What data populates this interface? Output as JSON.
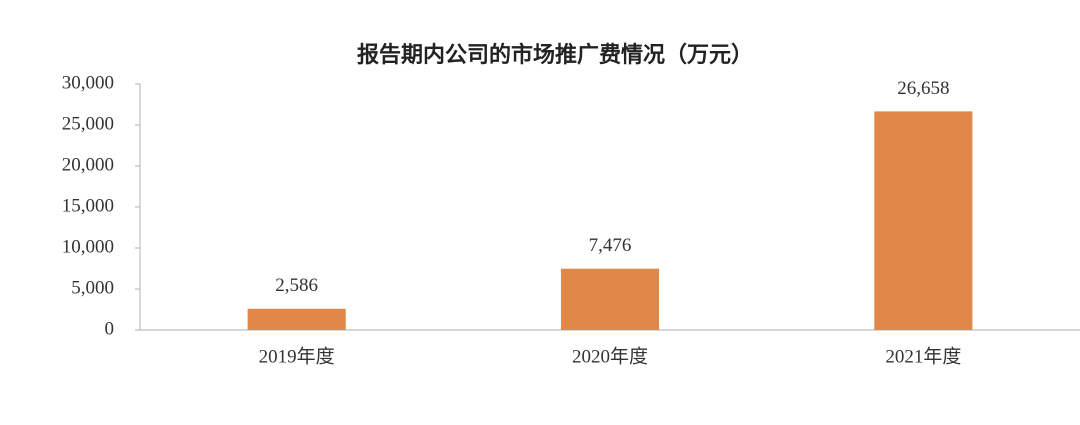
{
  "chart_data": {
    "type": "bar",
    "title": "报告期内公司的市场推广费情况（万元）",
    "categories": [
      "2019年度",
      "2020年度",
      "2021年度"
    ],
    "values": [
      2586,
      7476,
      26658
    ],
    "value_labels": [
      "2,586",
      "7,476",
      "26,658"
    ],
    "color": "#e0874a",
    "ylim": [
      0,
      30000
    ],
    "yticks": [
      0,
      {
        "value": 5000,
        "label": "5,000"
      },
      {
        "value": 10000,
        "label": "10,000"
      },
      {
        "value": 15000,
        "label": "15,000"
      },
      {
        "value": 20000,
        "label": "20,000"
      },
      {
        "value": 25000,
        "label": "25,000"
      },
      {
        "value": 30000,
        "label": "30,000"
      }
    ],
    "grid": false
  }
}
